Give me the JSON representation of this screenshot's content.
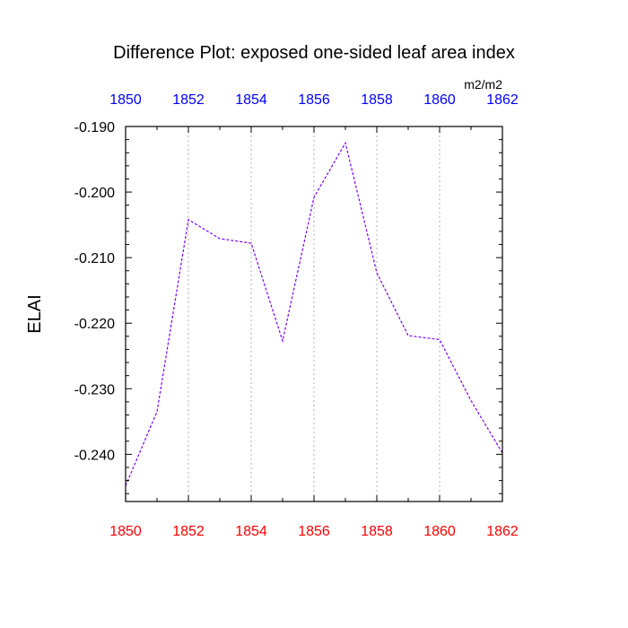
{
  "chart_data": {
    "type": "line",
    "title": "Difference Plot: exposed one-sided leaf area index",
    "units_label": "m2/m2",
    "ylabel": "ELAI",
    "xlabel": "",
    "x": [
      1850,
      1851,
      1852,
      1853,
      1854,
      1855,
      1856,
      1857,
      1858,
      1859,
      1860,
      1861,
      1862
    ],
    "series": [
      {
        "values": [
          -0.2448,
          -0.2335,
          -0.2042,
          -0.2071,
          -0.2078,
          -0.2227,
          -0.2008,
          -0.1925,
          -0.2123,
          -0.2219,
          -0.2225,
          -0.2318,
          -0.2398
        ],
        "color": "#7a00ff"
      }
    ],
    "xlim": [
      1850,
      1862
    ],
    "ylim": [
      -0.2472,
      -0.19
    ],
    "x_ticks": [
      "1850",
      "1852",
      "1854",
      "1856",
      "1858",
      "1860",
      "1862"
    ],
    "y_ticks": [
      "-0.190",
      "-0.200",
      "-0.210",
      "-0.220",
      "-0.230",
      "-0.240"
    ],
    "bottom_tick_color": "#ff0000",
    "top_tick_color": "#0000ff",
    "grid": "vertical dotted"
  }
}
